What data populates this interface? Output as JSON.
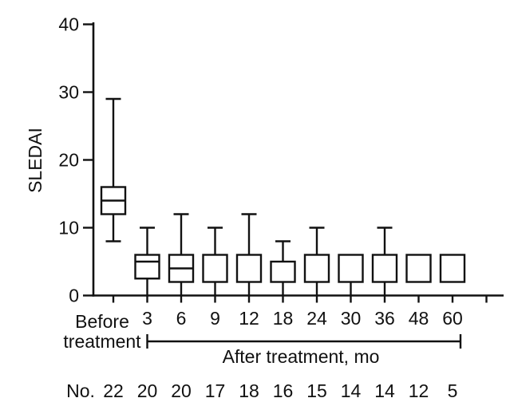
{
  "figure": {
    "background": "#ffffff",
    "line_color": "#111111"
  },
  "chart_data": {
    "type": "boxplot",
    "title": "",
    "xlabel": "",
    "ylabel": "SLEDAI",
    "ylim": [
      0,
      40
    ],
    "yticks": [
      0,
      10,
      20,
      30,
      40
    ],
    "grid": false,
    "legend": null,
    "categories": [
      "Before treatment",
      "3",
      "6",
      "9",
      "12",
      "18",
      "24",
      "30",
      "36",
      "48",
      "60"
    ],
    "before_label": {
      "line1": "Before",
      "line2": "treatment"
    },
    "bracket": {
      "label": "After treatment, mo",
      "from_category": "3",
      "to_category": "60"
    },
    "counts_row": {
      "label": "No.",
      "values": [
        22,
        20,
        20,
        17,
        18,
        16,
        15,
        14,
        14,
        12,
        5
      ]
    },
    "boxes": [
      {
        "label": "Before treatment",
        "n": 22,
        "whisker_low": 8,
        "q1": 12,
        "median": 14,
        "q3": 16,
        "whisker_high": 29
      },
      {
        "label": "3",
        "n": 20,
        "whisker_low": 0,
        "q1": 2.5,
        "median": 5,
        "q3": 6,
        "whisker_high": 10
      },
      {
        "label": "6",
        "n": 20,
        "whisker_low": 0,
        "q1": 2,
        "median": 4,
        "q3": 6,
        "whisker_high": 12
      },
      {
        "label": "9",
        "n": 17,
        "whisker_low": 0,
        "q1": 2,
        "median": null,
        "q3": 6,
        "whisker_high": 10
      },
      {
        "label": "12",
        "n": 18,
        "whisker_low": 0,
        "q1": 2,
        "median": null,
        "q3": 6,
        "whisker_high": 12
      },
      {
        "label": "18",
        "n": 16,
        "whisker_low": 0,
        "q1": 2,
        "median": null,
        "q3": 5,
        "whisker_high": 8
      },
      {
        "label": "24",
        "n": 15,
        "whisker_low": 0,
        "q1": 2,
        "median": null,
        "q3": 6,
        "whisker_high": 10
      },
      {
        "label": "30",
        "n": 14,
        "whisker_low": 0,
        "q1": 2,
        "median": null,
        "q3": 6,
        "whisker_high": null
      },
      {
        "label": "36",
        "n": 14,
        "whisker_low": 0,
        "q1": 2,
        "median": null,
        "q3": 6,
        "whisker_high": 10
      },
      {
        "label": "48",
        "n": 12,
        "whisker_low": null,
        "q1": 2,
        "median": null,
        "q3": 6,
        "whisker_high": null
      },
      {
        "label": "60",
        "n": 5,
        "whisker_low": null,
        "q1": 2,
        "median": null,
        "q3": 6,
        "whisker_high": null
      }
    ],
    "extra_unlabeled_tick": true
  }
}
